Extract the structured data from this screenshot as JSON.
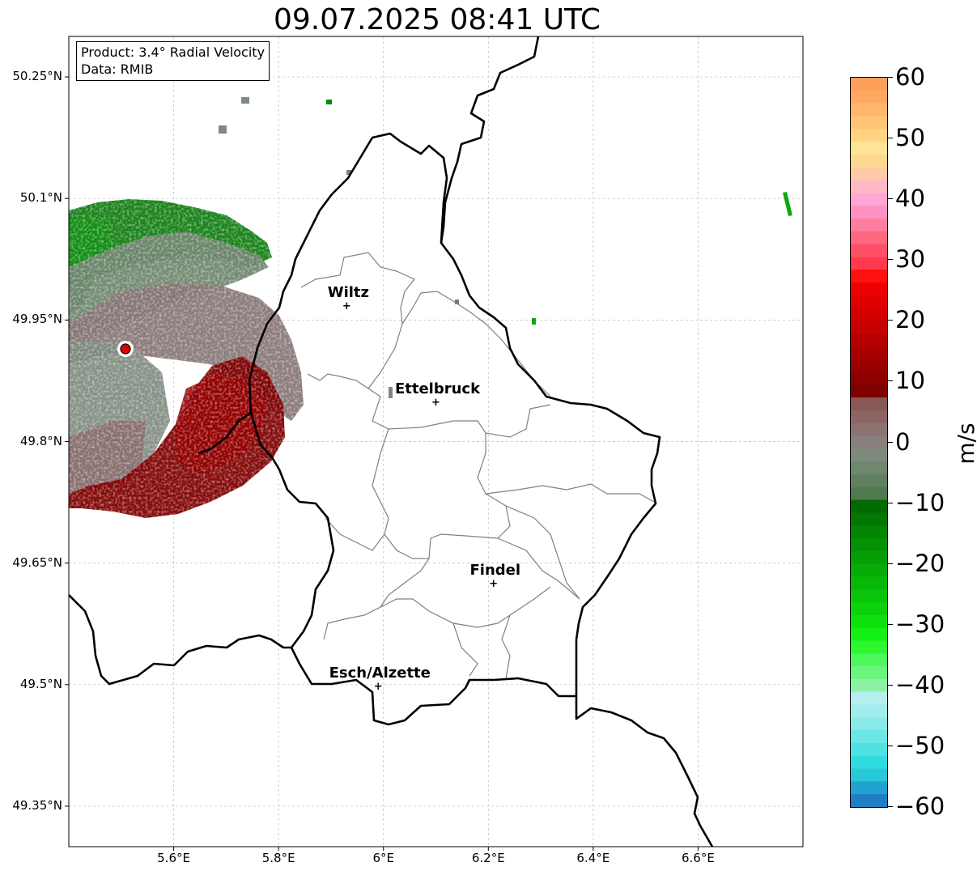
{
  "title": "09.07.2025 08:41 UTC",
  "info": {
    "product": "Product: 3.4° Radial Velocity",
    "data": "Data: RMIB"
  },
  "lat_ticks": [
    "50.25°N",
    "50.1°N",
    "49.95°N",
    "49.8°N",
    "49.65°N",
    "49.5°N",
    "49.35°N"
  ],
  "lon_ticks": [
    "5.6°E",
    "5.8°E",
    "6°E",
    "6.2°E",
    "6.4°E",
    "6.6°E"
  ],
  "cities": [
    {
      "name": "Wiltz",
      "lon": 5.93,
      "lat": 49.966
    },
    {
      "name": "Ettelbruck",
      "lon": 6.1,
      "lat": 49.847
    },
    {
      "name": "Findel",
      "lon": 6.21,
      "lat": 49.624
    },
    {
      "name": "Esch/Alzette",
      "lon": 5.99,
      "lat": 49.497
    }
  ],
  "radar_site": {
    "lon": 5.505,
    "lat": 49.914
  },
  "map_extent": {
    "lon_min": 5.4,
    "lon_max": 6.8,
    "lat_min": 49.3,
    "lat_max": 50.3
  },
  "colorbar": {
    "unit": "m/s",
    "min": -60,
    "max": 60,
    "ticks": [
      "60",
      "50",
      "40",
      "30",
      "20",
      "10",
      "0",
      "−10",
      "−20",
      "−30",
      "−40",
      "−50",
      "−60"
    ],
    "colors": [
      "#1f7fc4",
      "#22a2cf",
      "#28c8d6",
      "#30dcdf",
      "#4fe2e3",
      "#6ce6e6",
      "#8ae9e9",
      "#a3ecec",
      "#b6efef",
      "#8ef2a6",
      "#6af57d",
      "#4df75c",
      "#2cf72f",
      "#14f014",
      "#0ee00e",
      "#0bd20b",
      "#09c509",
      "#07b807",
      "#06ab06",
      "#059e05",
      "#049104",
      "#038403",
      "#027702",
      "#026a02",
      "#4f7a4f",
      "#5f7f5f",
      "#6f866f",
      "#7d8b7d",
      "#897f7f",
      "#8d7272",
      "#8c6464",
      "#8a5757",
      "#7e0000",
      "#8c0000",
      "#9a0000",
      "#a80000",
      "#b60000",
      "#c40000",
      "#d20000",
      "#e00000",
      "#ee0000",
      "#ff1010",
      "#ff3a4f",
      "#ff5068",
      "#ff6880",
      "#ff7ea0",
      "#ff92c2",
      "#ffa6d6",
      "#ffb8c4",
      "#ffcaa8",
      "#ffd990",
      "#ffe498",
      "#ffd380",
      "#ffc574",
      "#ffb66a",
      "#ffa862",
      "#ffa05a"
    ]
  },
  "colors": {
    "approaching": "#006400",
    "receding": "#7e0000",
    "zero": "#6f866f",
    "border": "#000000",
    "canton": "#808080",
    "grid": "#c0c0c0"
  }
}
